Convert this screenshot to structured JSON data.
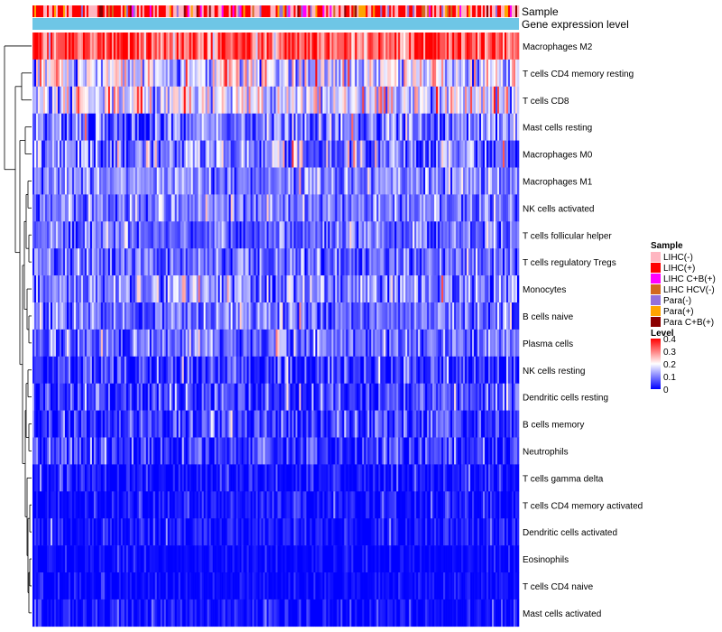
{
  "chart_data": {
    "type": "heatmap",
    "annotations": {
      "sample_label": "Sample",
      "level_label": "Gene expression level",
      "level_bar_color": "#6EC6E6"
    },
    "rows": [
      {
        "name": "Macrophages M2",
        "mean": 0.34,
        "spread": 0.07
      },
      {
        "name": "T cells CD4 memory resting",
        "mean": 0.17,
        "spread": 0.08
      },
      {
        "name": "T cells CD8",
        "mean": 0.18,
        "spread": 0.07
      },
      {
        "name": "Mast cells resting",
        "mean": 0.09,
        "spread": 0.06
      },
      {
        "name": "Macrophages M0",
        "mean": 0.09,
        "spread": 0.07
      },
      {
        "name": "Macrophages M1",
        "mean": 0.1,
        "spread": 0.05
      },
      {
        "name": "NK cells activated",
        "mean": 0.09,
        "spread": 0.05
      },
      {
        "name": "T cells follicular helper",
        "mean": 0.08,
        "spread": 0.05
      },
      {
        "name": "T cells regulatory  Tregs",
        "mean": 0.08,
        "spread": 0.05
      },
      {
        "name": "Monocytes",
        "mean": 0.11,
        "spread": 0.06
      },
      {
        "name": "B cells naive",
        "mean": 0.08,
        "spread": 0.05
      },
      {
        "name": "Plasma cells",
        "mean": 0.08,
        "spread": 0.05
      },
      {
        "name": "NK cells resting",
        "mean": 0.04,
        "spread": 0.05
      },
      {
        "name": "Dendritic cells resting",
        "mean": 0.05,
        "spread": 0.05
      },
      {
        "name": "B cells memory",
        "mean": 0.04,
        "spread": 0.05
      },
      {
        "name": "Neutrophils",
        "mean": 0.04,
        "spread": 0.05
      },
      {
        "name": "T cells gamma delta",
        "mean": 0.01,
        "spread": 0.03
      },
      {
        "name": "T cells CD4 memory activated",
        "mean": 0.01,
        "spread": 0.03
      },
      {
        "name": "Dendritic cells activated",
        "mean": 0.01,
        "spread": 0.03
      },
      {
        "name": "Eosinophils",
        "mean": 0.0,
        "spread": 0.02
      },
      {
        "name": "T cells CD4 naive",
        "mean": 0.0,
        "spread": 0.02
      },
      {
        "name": "Mast cells activated",
        "mean": 0.01,
        "spread": 0.03
      }
    ],
    "n_samples": 270,
    "color_scale": {
      "min": 0,
      "max": 0.4,
      "low_color": "#0000FF",
      "mid_color": "#FFFFFF",
      "high_color": "#FF0000",
      "mid_value": 0.2
    },
    "legend": {
      "sample": {
        "title": "Sample",
        "entries": [
          {
            "label": "LIHC(-)",
            "color": "#FFB6C1"
          },
          {
            "label": "LIHC(+)",
            "color": "#FF0000"
          },
          {
            "label": "LIHC C+B(+)",
            "color": "#FF00FF"
          },
          {
            "label": "LIHC HCV(-)",
            "color": "#D2691E"
          },
          {
            "label": "Para(-)",
            "color": "#9370DB"
          },
          {
            "label": "Para(+)",
            "color": "#FFA500"
          },
          {
            "label": "Para C+B(+)",
            "color": "#8B0000"
          }
        ]
      },
      "level": {
        "title": "Level",
        "ticks": [
          "0.4",
          "0.3",
          "0.2",
          "0.1",
          "0"
        ]
      }
    }
  }
}
